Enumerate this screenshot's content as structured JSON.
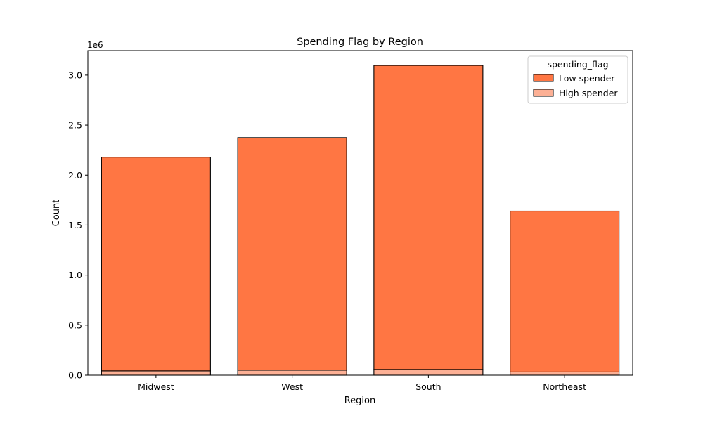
{
  "chart_data": {
    "type": "bar",
    "stacked": true,
    "title": "Spending Flag by Region",
    "xlabel": "Region",
    "ylabel": "Count",
    "y_offset_label": "1e6",
    "categories": [
      "Midwest",
      "West",
      "South",
      "Northeast"
    ],
    "ylim": [
      0,
      3245000
    ],
    "yticks": [
      0,
      500000,
      1000000,
      1500000,
      2000000,
      2500000,
      3000000
    ],
    "ytick_labels": [
      "0.0",
      "0.5",
      "1.0",
      "1.5",
      "2.0",
      "2.5",
      "3.0"
    ],
    "grid": false,
    "legend": {
      "title": "spending_flag",
      "placement": "top-right"
    },
    "series": [
      {
        "name": "High spender",
        "color": "#fcb095",
        "values": [
          43000,
          50000,
          57000,
          32000
        ]
      },
      {
        "name": "Low spender",
        "color": "#ff7643",
        "values": [
          2137000,
          2325000,
          3040000,
          1608000
        ]
      }
    ],
    "legend_order": [
      "Low spender",
      "High spender"
    ]
  }
}
